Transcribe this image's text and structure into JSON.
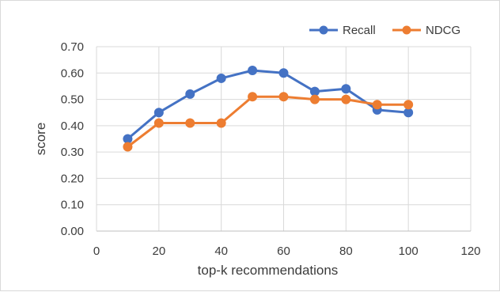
{
  "chart_data": {
    "type": "line",
    "title": "",
    "xlabel": "top-k recommendations",
    "ylabel": "score",
    "xlim": [
      0,
      120
    ],
    "ylim": [
      0,
      0.7
    ],
    "x_ticks": [
      0,
      20,
      40,
      60,
      80,
      100,
      120
    ],
    "y_ticks": [
      0,
      0.1,
      0.2,
      0.3,
      0.4,
      0.5,
      0.6,
      0.7
    ],
    "y_tick_format": "fixed2",
    "grid": true,
    "legend_position": "top-right",
    "x": [
      10,
      20,
      30,
      40,
      50,
      60,
      70,
      80,
      90,
      100
    ],
    "series": [
      {
        "name": "Recall",
        "color": "#4472C4",
        "values": [
          0.35,
          0.45,
          0.52,
          0.58,
          0.61,
          0.6,
          0.53,
          0.54,
          0.46,
          0.45
        ]
      },
      {
        "name": "NDCG",
        "color": "#ED7D31",
        "values": [
          0.32,
          0.41,
          0.41,
          0.41,
          0.51,
          0.51,
          0.5,
          0.5,
          0.48,
          0.48
        ]
      }
    ]
  }
}
